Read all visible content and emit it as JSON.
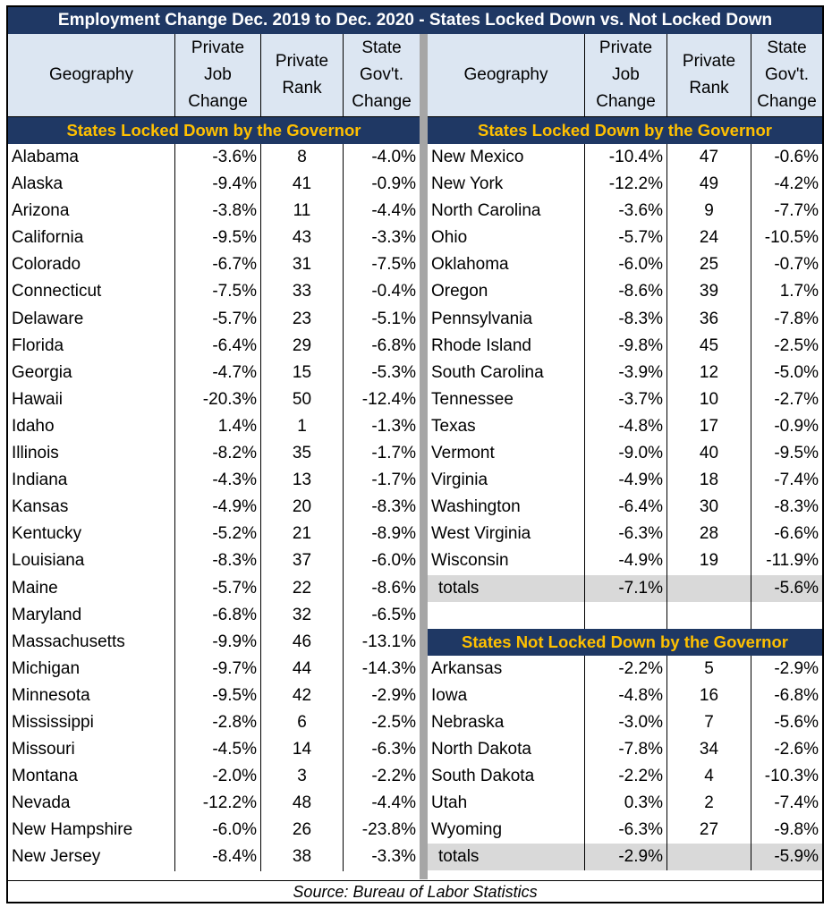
{
  "title": "Employment Change Dec. 2019 to Dec. 2020 - States Locked Down vs. Not Locked Down",
  "headers": {
    "geography": "Geography",
    "private_job_change": [
      "Private",
      "Job",
      "Change"
    ],
    "private_rank": [
      "Private",
      "Rank"
    ],
    "state_govt_change": [
      "State",
      "Gov't.",
      "Change"
    ]
  },
  "locked_label": "States Locked Down by the Governor",
  "not_locked_label": "States Not Locked Down by the Governor",
  "left_rows": [
    {
      "state": "Alabama",
      "job": "-3.6%",
      "rank": "8",
      "gov": "-4.0%"
    },
    {
      "state": "Alaska",
      "job": "-9.4%",
      "rank": "41",
      "gov": "-0.9%"
    },
    {
      "state": "Arizona",
      "job": "-3.8%",
      "rank": "11",
      "gov": "-4.4%"
    },
    {
      "state": "California",
      "job": "-9.5%",
      "rank": "43",
      "gov": "-3.3%"
    },
    {
      "state": "Colorado",
      "job": "-6.7%",
      "rank": "31",
      "gov": "-7.5%"
    },
    {
      "state": "Connecticut",
      "job": "-7.5%",
      "rank": "33",
      "gov": "-0.4%"
    },
    {
      "state": "Delaware",
      "job": "-5.7%",
      "rank": "23",
      "gov": "-5.1%"
    },
    {
      "state": "Florida",
      "job": "-6.4%",
      "rank": "29",
      "gov": "-6.8%"
    },
    {
      "state": "Georgia",
      "job": "-4.7%",
      "rank": "15",
      "gov": "-5.3%"
    },
    {
      "state": "Hawaii",
      "job": "-20.3%",
      "rank": "50",
      "gov": "-12.4%"
    },
    {
      "state": "Idaho",
      "job": "1.4%",
      "rank": "1",
      "gov": "-1.3%"
    },
    {
      "state": "Illinois",
      "job": "-8.2%",
      "rank": "35",
      "gov": "-1.7%"
    },
    {
      "state": "Indiana",
      "job": "-4.3%",
      "rank": "13",
      "gov": "-1.7%"
    },
    {
      "state": "Kansas",
      "job": "-4.9%",
      "rank": "20",
      "gov": "-8.3%"
    },
    {
      "state": "Kentucky",
      "job": "-5.2%",
      "rank": "21",
      "gov": "-8.9%"
    },
    {
      "state": "Louisiana",
      "job": "-8.3%",
      "rank": "37",
      "gov": "-6.0%"
    },
    {
      "state": "Maine",
      "job": "-5.7%",
      "rank": "22",
      "gov": "-8.6%"
    },
    {
      "state": "Maryland",
      "job": "-6.8%",
      "rank": "32",
      "gov": "-6.5%"
    },
    {
      "state": "Massachusetts",
      "job": "-9.9%",
      "rank": "46",
      "gov": "-13.1%"
    },
    {
      "state": "Michigan",
      "job": "-9.7%",
      "rank": "44",
      "gov": "-14.3%"
    },
    {
      "state": "Minnesota",
      "job": "-9.5%",
      "rank": "42",
      "gov": "-2.9%"
    },
    {
      "state": "Mississippi",
      "job": "-2.8%",
      "rank": "6",
      "gov": "-2.5%"
    },
    {
      "state": "Missouri",
      "job": "-4.5%",
      "rank": "14",
      "gov": "-6.3%"
    },
    {
      "state": "Montana",
      "job": "-2.0%",
      "rank": "3",
      "gov": "-2.2%"
    },
    {
      "state": "Nevada",
      "job": "-12.2%",
      "rank": "48",
      "gov": "-4.4%"
    },
    {
      "state": "New Hampshire",
      "job": "-6.0%",
      "rank": "26",
      "gov": "-23.8%"
    },
    {
      "state": "New Jersey",
      "job": "-8.4%",
      "rank": "38",
      "gov": "-3.3%"
    }
  ],
  "right_locked_rows": [
    {
      "state": "New Mexico",
      "job": "-10.4%",
      "rank": "47",
      "gov": "-0.6%"
    },
    {
      "state": "New York",
      "job": "-12.2%",
      "rank": "49",
      "gov": "-4.2%"
    },
    {
      "state": "North Carolina",
      "job": "-3.6%",
      "rank": "9",
      "gov": "-7.7%"
    },
    {
      "state": "Ohio",
      "job": "-5.7%",
      "rank": "24",
      "gov": "-10.5%"
    },
    {
      "state": "Oklahoma",
      "job": "-6.0%",
      "rank": "25",
      "gov": "-0.7%"
    },
    {
      "state": "Oregon",
      "job": "-8.6%",
      "rank": "39",
      "gov": "1.7%"
    },
    {
      "state": "Pennsylvania",
      "job": "-8.3%",
      "rank": "36",
      "gov": "-7.8%"
    },
    {
      "state": "Rhode Island",
      "job": "-9.8%",
      "rank": "45",
      "gov": "-2.5%"
    },
    {
      "state": "South Carolina",
      "job": "-3.9%",
      "rank": "12",
      "gov": "-5.0%"
    },
    {
      "state": "Tennessee",
      "job": "-3.7%",
      "rank": "10",
      "gov": "-2.7%"
    },
    {
      "state": "Texas",
      "job": "-4.8%",
      "rank": "17",
      "gov": "-0.9%"
    },
    {
      "state": "Vermont",
      "job": "-9.0%",
      "rank": "40",
      "gov": "-9.5%"
    },
    {
      "state": "Virginia",
      "job": "-4.9%",
      "rank": "18",
      "gov": "-7.4%"
    },
    {
      "state": "Washington",
      "job": "-6.4%",
      "rank": "30",
      "gov": "-8.3%"
    },
    {
      "state": "West Virginia",
      "job": "-6.3%",
      "rank": "28",
      "gov": "-6.6%"
    },
    {
      "state": "Wisconsin",
      "job": "-4.9%",
      "rank": "19",
      "gov": "-11.9%"
    }
  ],
  "locked_totals": {
    "label": "totals",
    "job": "-7.1%",
    "gov": "-5.6%"
  },
  "not_locked_rows": [
    {
      "state": "Arkansas",
      "job": "-2.2%",
      "rank": "5",
      "gov": "-2.9%"
    },
    {
      "state": "Iowa",
      "job": "-4.8%",
      "rank": "16",
      "gov": "-6.8%"
    },
    {
      "state": "Nebraska",
      "job": "-3.0%",
      "rank": "7",
      "gov": "-5.6%"
    },
    {
      "state": "North Dakota",
      "job": "-7.8%",
      "rank": "34",
      "gov": "-2.6%"
    },
    {
      "state": "South Dakota",
      "job": "-2.2%",
      "rank": "4",
      "gov": "-10.3%"
    },
    {
      "state": "Utah",
      "job": "0.3%",
      "rank": "2",
      "gov": "-7.4%"
    },
    {
      "state": "Wyoming",
      "job": "-6.3%",
      "rank": "27",
      "gov": "-9.8%"
    }
  ],
  "not_locked_totals": {
    "label": "totals",
    "job": "-2.9%",
    "gov": "-5.9%"
  },
  "source": "Source: Bureau of Labor Statistics",
  "colors": {
    "navy": "#1f3864",
    "gold": "#ffc000",
    "header_fill": "#dce6f2",
    "totals_fill": "#d9d9d9",
    "divider": "#a6a6a6"
  }
}
